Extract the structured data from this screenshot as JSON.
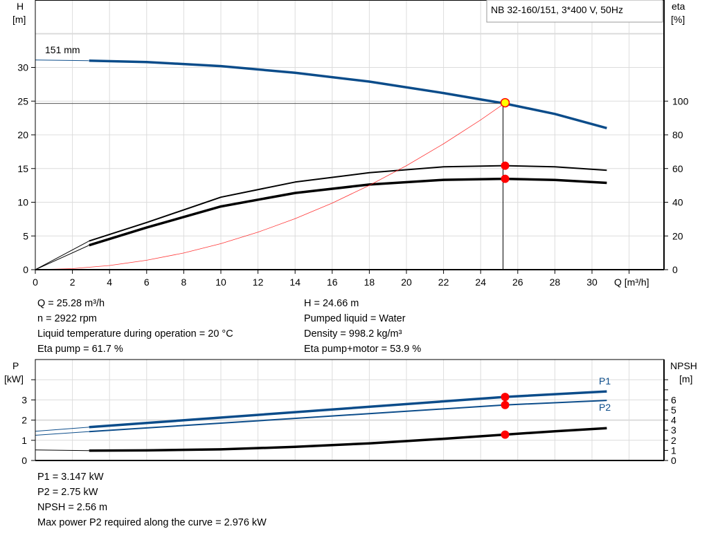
{
  "chart_data": [
    {
      "type": "line",
      "title": "NB 32-160/151, 3*400 V, 50Hz",
      "xlabel": "Q [m³/h]",
      "ylabel_left": [
        "H",
        "[m]"
      ],
      "ylabel_right": [
        "eta",
        "[%]"
      ],
      "xlim": [
        0,
        34
      ],
      "ylim_left": [
        0,
        40
      ],
      "ylim_right": [
        0,
        160
      ],
      "xticks": [
        "0",
        "2",
        "4",
        "6",
        "8",
        "10",
        "12",
        "14",
        "16",
        "18",
        "20",
        "22",
        "24",
        "26",
        "28",
        "30"
      ],
      "yticks_left": [
        "0",
        "5",
        "10",
        "15",
        "20",
        "25",
        "30"
      ],
      "yticks_right": [
        "0",
        "20",
        "40",
        "60",
        "80",
        "100"
      ],
      "grid": true,
      "curve_label": "151 mm",
      "series": [
        {
          "key": "head",
          "axis": "left",
          "color": "#0b4c8a",
          "x": [
            0,
            2.9,
            6,
            10,
            14,
            18,
            22,
            25.28,
            28,
            30.8
          ],
          "y": [
            31.1,
            31.0,
            30.8,
            30.2,
            29.2,
            27.9,
            26.2,
            24.66,
            23.1,
            21.0
          ]
        },
        {
          "key": "eta-pump",
          "axis": "right",
          "color": "#000000",
          "x": [
            0,
            2.9,
            6,
            10,
            14,
            18,
            22,
            25.28,
            28,
            30.8
          ],
          "y": [
            0,
            17,
            28,
            43,
            52,
            57.5,
            61,
            61.7,
            61,
            59
          ]
        },
        {
          "key": "eta-pump-motor",
          "axis": "right",
          "color": "#000000",
          "x": [
            0,
            2.9,
            6,
            10,
            14,
            18,
            22,
            25.28,
            28,
            30.8
          ],
          "y": [
            0,
            14.5,
            25,
            37.5,
            45.5,
            50.5,
            53.3,
            53.9,
            53.2,
            51.5
          ]
        },
        {
          "key": "system-curve",
          "axis": "left",
          "color": "#ff0000",
          "x": [
            0,
            2,
            4,
            6,
            8,
            10,
            12,
            14,
            16,
            18,
            20,
            22,
            24,
            25.28
          ],
          "y": [
            0,
            0.15,
            0.62,
            1.39,
            2.47,
            3.86,
            5.56,
            7.56,
            9.88,
            12.5,
            15.43,
            18.67,
            22.22,
            24.66
          ]
        }
      ],
      "operating_point": {
        "Q": 25.28,
        "H": 24.66,
        "eta_pump": 61.7,
        "eta_pump_motor": 53.9
      }
    },
    {
      "type": "line",
      "xlim": [
        0,
        34
      ],
      "ylabel_left": [
        "P",
        "[kW]"
      ],
      "ylabel_right": [
        "NPSH",
        "[m]"
      ],
      "ylim_left": [
        0,
        5
      ],
      "ylim_right": [
        0,
        10
      ],
      "yticks_left": [
        "0",
        "1",
        "2",
        "3"
      ],
      "yticks_right": [
        "0",
        "1",
        "2",
        "3",
        "4",
        "5",
        "6"
      ],
      "grid": true,
      "series": [
        {
          "key": "P1",
          "name": "P1",
          "axis": "left",
          "color": "#0b4c8a",
          "x": [
            0,
            2.9,
            25.28,
            30.8
          ],
          "y": [
            1.45,
            1.65,
            3.147,
            3.42
          ]
        },
        {
          "key": "P2",
          "name": "P2",
          "axis": "left",
          "color": "#0b4c8a",
          "x": [
            0,
            2.9,
            25.28,
            30.8
          ],
          "y": [
            1.25,
            1.43,
            2.75,
            2.976
          ]
        },
        {
          "key": "NPSH",
          "axis": "right",
          "color": "#000000",
          "x": [
            0,
            2.9,
            6,
            10,
            14,
            18,
            22,
            25.28,
            28,
            30.8
          ],
          "y": [
            1.05,
            0.98,
            1.0,
            1.1,
            1.35,
            1.7,
            2.15,
            2.56,
            2.9,
            3.2
          ]
        }
      ],
      "operating_point": {
        "Q": 25.28,
        "P1": 3.147,
        "P2": 2.75,
        "NPSH": 2.56
      }
    }
  ],
  "colors": {
    "point": "#ff0000",
    "duty_point_fill": "#ffff00"
  },
  "info_top": {
    "left": [
      "Q = 25.28 m³/h",
      "n = 2922 rpm",
      "Liquid temperature during operation = 20 °C",
      "Eta pump = 61.7 %"
    ],
    "right": [
      "H = 24.66 m",
      "Pumped liquid = Water",
      "Density = 998.2 kg/m³",
      "Eta pump+motor = 53.9 %"
    ]
  },
  "info_bottom": [
    "P1 = 3.147 kW",
    "P2 = 2.75 kW",
    "NPSH = 2.56 m",
    "Max power P2 required along the curve = 2.976 kW"
  ]
}
